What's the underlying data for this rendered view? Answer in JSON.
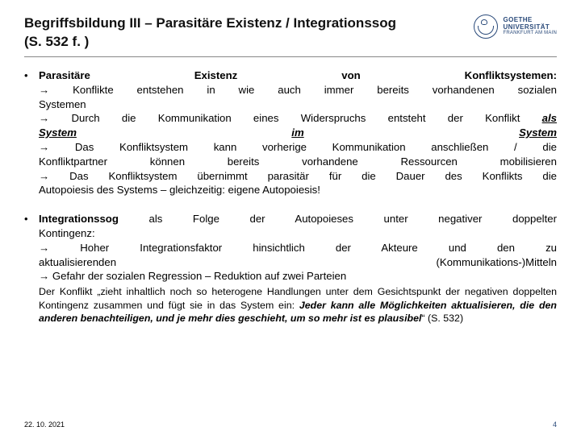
{
  "header": {
    "title_l1": "Begriffsbildung III – Parasitäre Existenz / Integrationssog",
    "title_l2": "(S. 532 f. )",
    "logo": {
      "line1": "GOETHE",
      "line2": "UNIVERSITÄT",
      "line3": "FRANKFURT AM MAIN"
    }
  },
  "bullets": {
    "b1": {
      "l1_w1": "Parasitäre",
      "l1_w2": "Existenz",
      "l1_w3": "von",
      "l1_w4": "Konfliktsystemen:",
      "l2": "→ Konflikte entstehen in wie auch immer bereits vorhandenen sozialen",
      "l3": "Systemen",
      "l4_pre": "→ Durch die Kommunikation eines Widerspruchs entsteht der Konflikt ",
      "l4_u": "als",
      "l5_u1": "System",
      "l5_mid": "im",
      "l5_u2": "System",
      "l6": "→ Das Konfliktsystem kann vorherige Kommunikation anschließen / die",
      "l7_w1": "Konfliktpartner",
      "l7_w2": "können",
      "l7_w3": "bereits",
      "l7_w4": "vorhandene",
      "l7_w5": "Ressourcen",
      "l7_w6": "mobilisieren",
      "l8": "→ Das Konfliktsystem übernimmt parasitär für die Dauer des Konflikts die",
      "l9": "Autopoiesis des Systems – gleichzeitig: eigene Autopoiesis!"
    },
    "b2": {
      "l1_w1": "Integrationssog",
      "l1_rest": "als Folge der Autopoieses unter negativer doppelter",
      "l2": "Kontingenz:",
      "l3_a": "→  Hoher  Integrationsfaktor  hinsichtlich  der  Akteure  und  den  zu",
      "l4_w1": "aktualisierenden",
      "l4_w2": "(Kommunikations-)Mitteln",
      "l5": "→  Gefahr  der  sozialen  Regression  –  Reduktion  auf  zwei  Parteien",
      "quote_pre": "Der Konflikt „zieht inhaltlich noch so heterogene Handlungen unter dem Gesichtspunkt der negativen doppelten Kontingenz zusammen und fügt sie in das System ein: ",
      "quote_bold": "Jeder kann alle Möglichkeiten aktualisieren, die den anderen benachteiligen, und je mehr dies geschieht, um so mehr ist es plausibel",
      "quote_post": "“ (S. 532)"
    }
  },
  "footer": {
    "date": "22. 10. 2021",
    "page": "4"
  },
  "colors": {
    "accent": "#2a4a7a",
    "rule": "#888888",
    "text": "#000000",
    "bg": "#ffffff"
  }
}
